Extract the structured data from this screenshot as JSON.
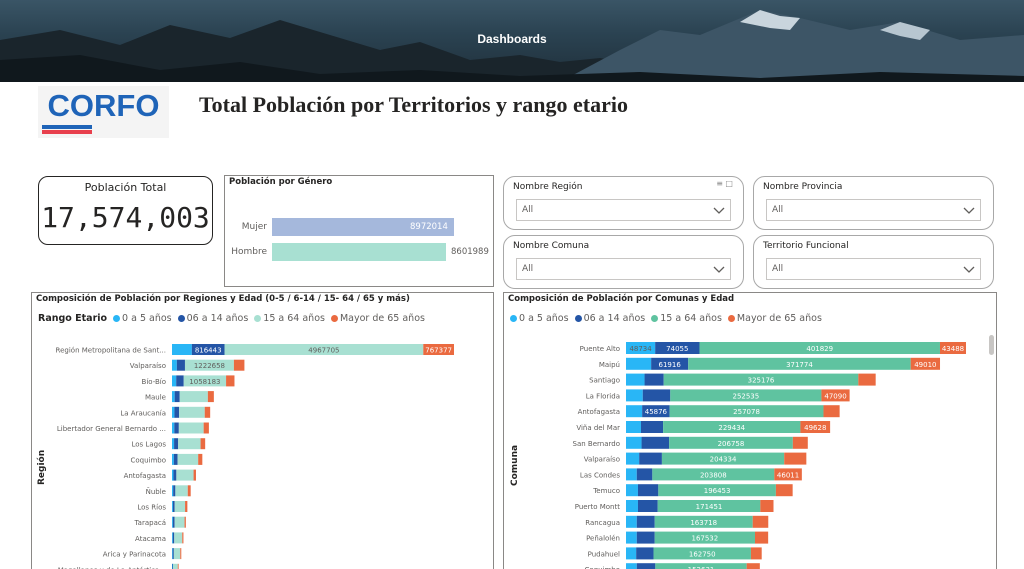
{
  "banner": {
    "title": "Dashboards"
  },
  "logo": {
    "text": "CORFO"
  },
  "page_title": "Total Población por Territorios y rango etario",
  "kpi": {
    "label": "Población Total",
    "value": "17,574,003"
  },
  "gender": {
    "title": "Población por Género",
    "items": [
      {
        "label": "Mujer",
        "value": 8972014,
        "value_text": "8972014",
        "color": "#a5b8dc"
      },
      {
        "label": "Hombre",
        "value": 8601989,
        "value_text": "8601989",
        "color": "#a8e0d2"
      }
    ]
  },
  "slicers": [
    {
      "label": "Nombre Región",
      "value": "All"
    },
    {
      "label": "Nombre Provincia",
      "value": "All"
    },
    {
      "label": "Nombre Comuna",
      "value": "All"
    },
    {
      "label": "Territorio Funcional",
      "value": "All"
    }
  ],
  "colors": {
    "age_0_5": "#29b6f6",
    "age_6_14": "#2455a6",
    "age_15_64": "#a8e0d2",
    "age_15_64_comuna": "#5fc3a0",
    "age_65": "#ea6a40"
  },
  "chart_data": [
    {
      "type": "bar",
      "orientation": "horizontal",
      "stacked": true,
      "title": "Composición de Población por Regiones y Edad (0-5 / 6-14 / 15- 64 / 65  y más)",
      "legend_title": "Rango Etario",
      "ylabel": "Región",
      "categories": [
        "Región Metropolitana de Sant...",
        "Valparaíso",
        "Bío-Bío",
        "Maule",
        "La Araucanía",
        "Libertador General Bernardo ...",
        "Los Lagos",
        "Coquimbo",
        "Antofagasta",
        "Ñuble",
        "Los Ríos",
        "Tarapacá",
        "Atacama",
        "Arica y Parinacota",
        "Magallanes y de La Antártica..."
      ],
      "series": [
        {
          "name": "0 a 5 años",
          "values": [
            496000,
            121000,
            105000,
            67000,
            61000,
            58000,
            52000,
            47000,
            37000,
            29000,
            23000,
            22000,
            20000,
            16000,
            10000
          ],
          "labels": [
            "",
            "",
            "",
            "",
            "",
            "",
            "",
            "",
            "",
            "",
            "",
            "",
            "",
            "",
            ""
          ]
        },
        {
          "name": "06 a 14 años",
          "values": [
            816443,
            203000,
            188000,
            126000,
            117000,
            113000,
            102000,
            92000,
            72000,
            55000,
            44000,
            42000,
            36000,
            30000,
            19000
          ],
          "labels": [
            "816443",
            "",
            "",
            "",
            "",
            "",
            "",
            "",
            "",
            "",
            "",
            "",
            "",
            "",
            ""
          ]
        },
        {
          "name": "15 a 64 años",
          "values": [
            4967705,
            1222658,
            1058183,
            703000,
            640000,
            620000,
            560000,
            515000,
            430000,
            310000,
            260000,
            250000,
            200000,
            160000,
            115000
          ],
          "labels": [
            "4967705",
            "1222658",
            "1058183",
            "",
            "",
            "",
            "",
            "",
            "",
            "",
            "",
            "",
            "",
            "",
            ""
          ]
        },
        {
          "name": "Mayor de 65 años",
          "values": [
            767377,
            263000,
            210000,
            150000,
            136000,
            131000,
            115000,
            104000,
            60000,
            73000,
            57000,
            32000,
            30000,
            26000,
            22000
          ],
          "labels": [
            "767377",
            "",
            "",
            "",
            "",
            "",
            "",
            "",
            "",
            "",
            "",
            "",
            "",
            "",
            ""
          ]
        }
      ]
    },
    {
      "type": "bar",
      "orientation": "horizontal",
      "stacked": true,
      "title": "Composición de Población por Comunas y Edad",
      "ylabel": "Comuna",
      "categories": [
        "Puente Alto",
        "Maipú",
        "Santiago",
        "La Florida",
        "Antofagasta",
        "Viña del Mar",
        "San Bernardo",
        "Valparaíso",
        "Las Condes",
        "Temuco",
        "Puerto Montt",
        "Rancagua",
        "Peñalolén",
        "Pudahuel",
        "Coquimbo"
      ],
      "series": [
        {
          "name": "0 a 5 años",
          "values": [
            48734,
            42000,
            31000,
            28000,
            27000,
            25000,
            26000,
            22000,
            18000,
            20000,
            20000,
            18000,
            18000,
            17000,
            18000
          ],
          "labels": [
            "48734",
            "",
            "",
            "",
            "",
            "",
            "",
            "",
            "",
            "",
            "",
            "",
            "",
            "",
            ""
          ]
        },
        {
          "name": "06 a 14 años",
          "values": [
            74055,
            61916,
            32000,
            46000,
            45876,
            37000,
            46000,
            38000,
            26000,
            34000,
            33000,
            30000,
            30000,
            29000,
            31000
          ],
          "labels": [
            "74055",
            "61916",
            "",
            "",
            "45876",
            "",
            "",
            "",
            "",
            "",
            "",
            "",
            "",
            "",
            ""
          ]
        },
        {
          "name": "15 a 64 años",
          "values": [
            401829,
            371774,
            325176,
            252535,
            257078,
            229434,
            206758,
            204334,
            203808,
            196453,
            171451,
            163718,
            167532,
            162750,
            152631
          ],
          "labels": [
            "401829",
            "371774",
            "325176",
            "252535",
            "257078",
            "229434",
            "206758",
            "204334",
            "203808",
            "196453",
            "171451",
            "163718",
            "167532",
            "162750",
            "152631"
          ]
        },
        {
          "name": "Mayor de 65 años",
          "values": [
            43488,
            49010,
            29000,
            47090,
            27000,
            49628,
            25000,
            37000,
            46011,
            28000,
            22000,
            26000,
            22000,
            18000,
            22000
          ],
          "labels": [
            "43488",
            "49010",
            "",
            "47090",
            "",
            "49628",
            "",
            "",
            "46011",
            "",
            "",
            "",
            "",
            "",
            ""
          ]
        }
      ]
    }
  ]
}
